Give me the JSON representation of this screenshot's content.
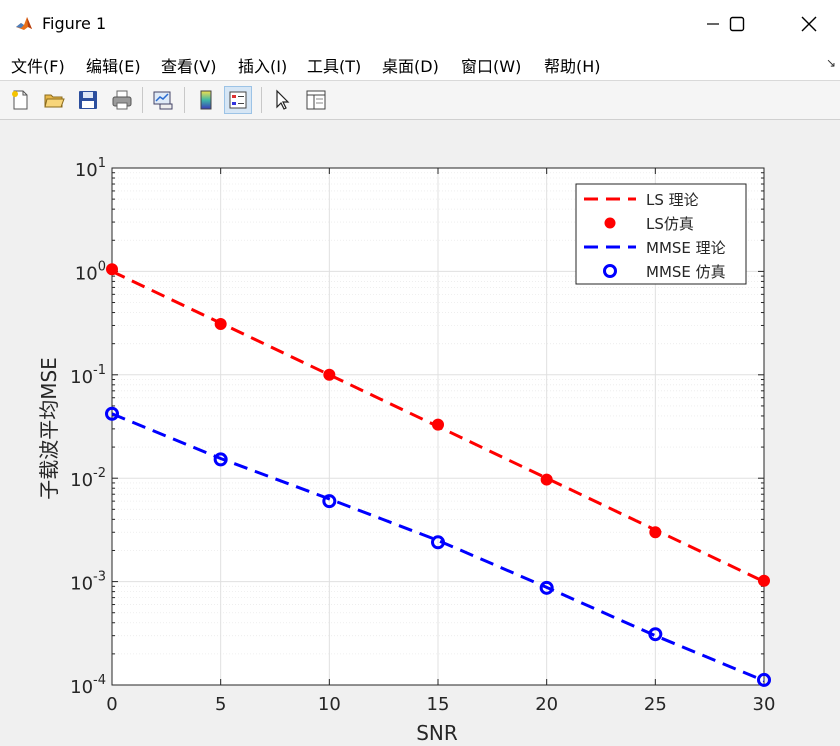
{
  "window": {
    "title": "Figure 1",
    "minimize_glyph": "—",
    "maximize_glyph": "☐",
    "close_glyph": "✕"
  },
  "menu": {
    "items": [
      "文件(F)",
      "编辑(E)",
      "查看(V)",
      "插入(I)",
      "工具(T)",
      "桌面(D)",
      "窗口(W)",
      "帮助(H)"
    ],
    "overflow_glyph": "↘"
  },
  "toolbar": {
    "icons": [
      "new-figure-icon",
      "open-file-icon",
      "save-icon",
      "print-icon",
      "link-plot-icon",
      "insert-colorbar-icon",
      "insert-legend-icon",
      "edit-plot-icon",
      "property-inspector-icon"
    ]
  },
  "colors": {
    "ls": "#ff0000",
    "mmse": "#0000ff",
    "grid": "#e0e0e0"
  },
  "chart_data": {
    "type": "line",
    "y_scale": "log",
    "grid": true,
    "legend_position": "top-right",
    "xlabel": "SNR",
    "ylabel": "子载波平均MSE",
    "xlim": [
      0,
      30
    ],
    "ylim": [
      0.0001,
      10
    ],
    "x_ticks": [
      "0",
      "5",
      "10",
      "15",
      "20",
      "25",
      "30"
    ],
    "y_tick_base": "10",
    "y_tick_exponents": [
      "1",
      "0",
      "-1",
      "-2",
      "-3",
      "-4"
    ],
    "x": [
      0,
      5,
      10,
      15,
      20,
      25,
      30
    ],
    "series": [
      {
        "name": "LS 理论",
        "style": "dashed-line",
        "color": "#ff0000",
        "values": [
          1.0,
          0.3162,
          0.1,
          0.03162,
          0.01,
          0.003162,
          0.001
        ]
      },
      {
        "name": "LS仿真",
        "style": "filled-circle",
        "color": "#ff0000",
        "values": [
          1.05,
          0.31,
          0.1,
          0.033,
          0.0097,
          0.003,
          0.00102
        ]
      },
      {
        "name": "MMSE 理论",
        "style": "dashed-line",
        "color": "#0000ff",
        "values": [
          0.042,
          0.0155,
          0.0063,
          0.0025,
          0.00088,
          0.0003,
          0.00011
        ]
      },
      {
        "name": "MMSE 仿真",
        "style": "open-circle",
        "color": "#0000ff",
        "values": [
          0.042,
          0.0152,
          0.006,
          0.0024,
          0.00087,
          0.00031,
          0.000112
        ]
      }
    ]
  }
}
